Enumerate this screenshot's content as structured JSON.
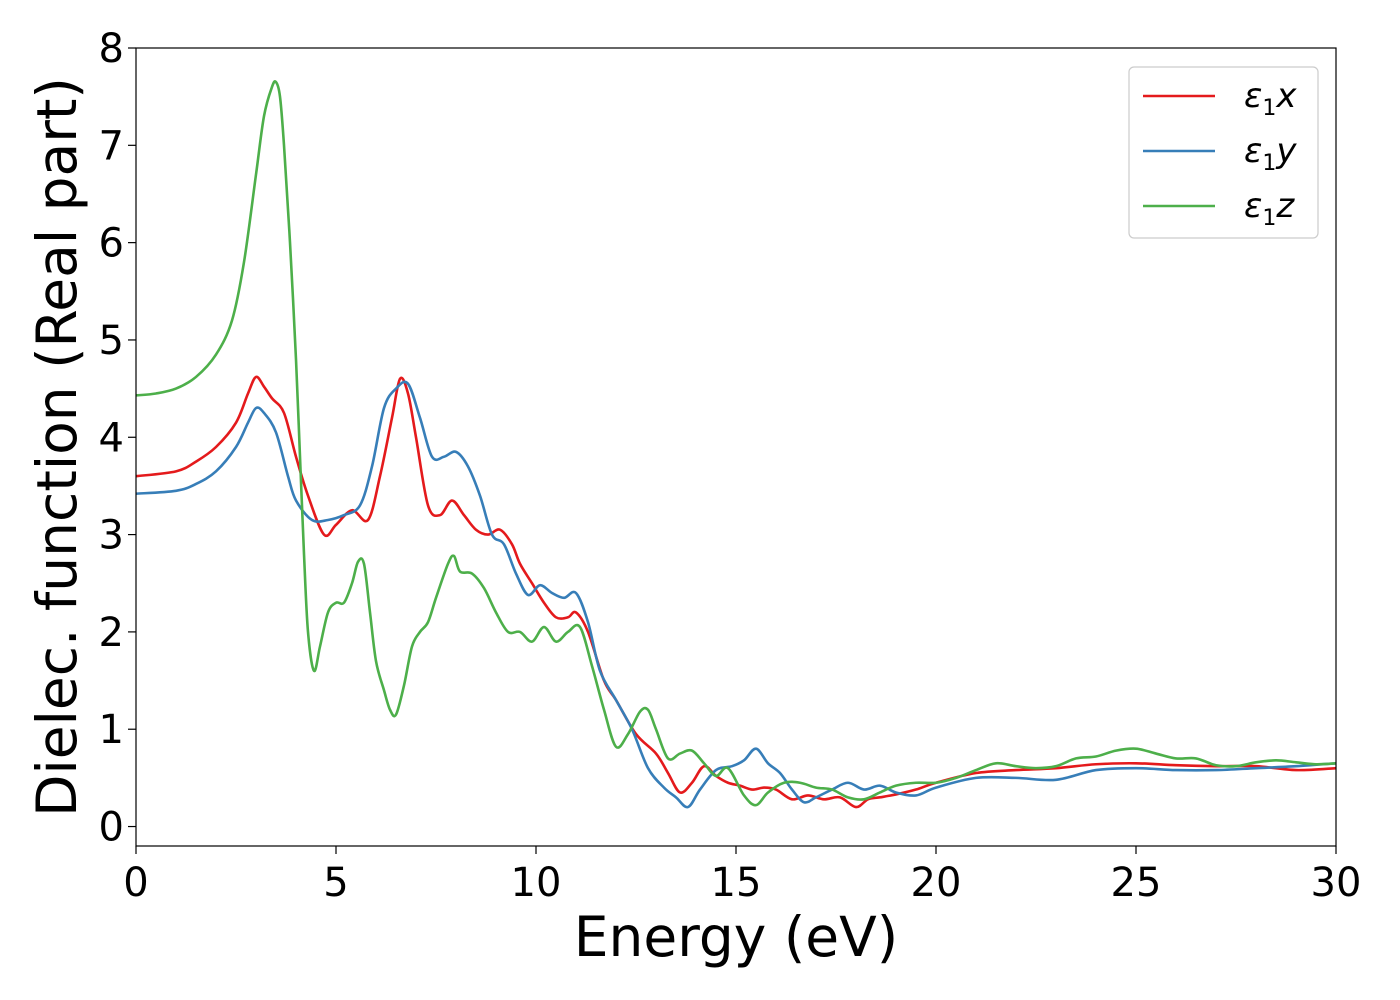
{
  "chart_data": {
    "type": "line",
    "xlabel": "Energy (eV)",
    "ylabel": "Dielec. function (Real part)",
    "xlim": [
      0,
      30
    ],
    "ylim": [
      -0.2,
      8.0
    ],
    "xticks": [
      0,
      5,
      10,
      15,
      20,
      25,
      30
    ],
    "yticks": [
      0,
      1,
      2,
      3,
      4,
      5,
      6,
      7,
      8
    ],
    "grid": false,
    "legend_position": "top-right",
    "series": [
      {
        "name": "ε1x",
        "legend_main": "ε",
        "legend_sub": "1",
        "legend_suffix": "x",
        "color": "#e41a1c",
        "x": [
          0,
          1,
          1.5,
          2,
          2.5,
          2.8,
          3.0,
          3.2,
          3.4,
          3.7,
          4.0,
          4.3,
          4.7,
          5.0,
          5.4,
          5.8,
          6.1,
          6.4,
          6.6,
          6.8,
          7.0,
          7.3,
          7.6,
          7.9,
          8.2,
          8.5,
          8.8,
          9.1,
          9.4,
          9.6,
          9.9,
          10.2,
          10.5,
          10.8,
          11.0,
          11.3,
          11.7,
          12.0,
          12.5,
          13.0,
          13.3,
          13.6,
          13.9,
          14.2,
          14.5,
          14.8,
          15.1,
          15.4,
          15.7,
          16.0,
          16.4,
          16.8,
          17.2,
          17.6,
          18.0,
          18.3,
          18.6,
          19.0,
          19.5,
          20.0,
          21.0,
          22.0,
          23.0,
          24.0,
          25.0,
          26.0,
          27.0,
          28.0,
          29.0,
          30.0
        ],
        "values": [
          3.6,
          3.65,
          3.75,
          3.9,
          4.15,
          4.45,
          4.62,
          4.52,
          4.4,
          4.25,
          3.8,
          3.4,
          3.0,
          3.1,
          3.25,
          3.15,
          3.6,
          4.2,
          4.6,
          4.45,
          4.0,
          3.3,
          3.2,
          3.35,
          3.2,
          3.05,
          3.0,
          3.05,
          2.9,
          2.7,
          2.5,
          2.3,
          2.15,
          2.15,
          2.2,
          2.0,
          1.5,
          1.3,
          0.95,
          0.75,
          0.55,
          0.35,
          0.45,
          0.62,
          0.52,
          0.45,
          0.42,
          0.38,
          0.4,
          0.38,
          0.28,
          0.32,
          0.28,
          0.3,
          0.2,
          0.28,
          0.3,
          0.33,
          0.38,
          0.45,
          0.55,
          0.58,
          0.6,
          0.64,
          0.65,
          0.63,
          0.62,
          0.62,
          0.58,
          0.6
        ]
      },
      {
        "name": "ε1y",
        "legend_main": "ε",
        "legend_sub": "1",
        "legend_suffix": "y",
        "color": "#377eb8",
        "x": [
          0,
          1,
          1.5,
          2,
          2.5,
          2.8,
          3.0,
          3.2,
          3.5,
          3.8,
          4.0,
          4.4,
          4.8,
          5.2,
          5.6,
          5.9,
          6.2,
          6.5,
          6.8,
          7.1,
          7.4,
          7.7,
          8.0,
          8.3,
          8.6,
          8.9,
          9.2,
          9.5,
          9.8,
          10.1,
          10.4,
          10.7,
          11.0,
          11.3,
          11.6,
          12.0,
          12.4,
          12.8,
          13.2,
          13.5,
          13.8,
          14.1,
          14.5,
          14.9,
          15.2,
          15.5,
          15.8,
          16.1,
          16.4,
          16.7,
          17.0,
          17.4,
          17.8,
          18.2,
          18.6,
          19.0,
          19.5,
          20.0,
          21.0,
          22.0,
          23.0,
          24.0,
          25.0,
          26.0,
          27.0,
          28.0,
          29.0,
          30.0
        ],
        "values": [
          3.42,
          3.45,
          3.52,
          3.65,
          3.9,
          4.15,
          4.3,
          4.25,
          4.05,
          3.6,
          3.35,
          3.15,
          3.15,
          3.2,
          3.3,
          3.7,
          4.3,
          4.5,
          4.55,
          4.2,
          3.8,
          3.8,
          3.85,
          3.7,
          3.4,
          3.0,
          2.9,
          2.6,
          2.38,
          2.48,
          2.4,
          2.35,
          2.4,
          2.1,
          1.6,
          1.3,
          1.0,
          0.6,
          0.4,
          0.3,
          0.2,
          0.38,
          0.58,
          0.62,
          0.68,
          0.8,
          0.65,
          0.55,
          0.38,
          0.25,
          0.3,
          0.38,
          0.45,
          0.38,
          0.42,
          0.35,
          0.32,
          0.4,
          0.5,
          0.5,
          0.48,
          0.58,
          0.6,
          0.58,
          0.58,
          0.6,
          0.62,
          0.65
        ]
      },
      {
        "name": "ε1z",
        "legend_main": "ε",
        "legend_sub": "1",
        "legend_suffix": "z",
        "color": "#4daf4a",
        "x": [
          0,
          0.5,
          1.0,
          1.5,
          2.0,
          2.4,
          2.7,
          3.0,
          3.2,
          3.4,
          3.5,
          3.6,
          3.7,
          3.85,
          4.0,
          4.1,
          4.2,
          4.3,
          4.45,
          4.6,
          4.8,
          5.0,
          5.2,
          5.4,
          5.55,
          5.7,
          5.85,
          6.0,
          6.2,
          6.35,
          6.5,
          6.7,
          6.9,
          7.1,
          7.3,
          7.5,
          7.8,
          7.95,
          8.1,
          8.4,
          8.7,
          9.0,
          9.3,
          9.6,
          9.9,
          10.2,
          10.5,
          10.8,
          11.1,
          11.4,
          11.7,
          12.0,
          12.3,
          12.6,
          12.8,
          13.0,
          13.3,
          13.6,
          13.9,
          14.2,
          14.5,
          14.8,
          15.2,
          15.5,
          15.8,
          16.2,
          16.6,
          17.0,
          17.4,
          17.8,
          18.2,
          18.6,
          19.0,
          19.5,
          20.0,
          20.5,
          21.0,
          21.5,
          22.0,
          22.5,
          23.0,
          23.5,
          24.0,
          24.5,
          25.0,
          25.5,
          26.0,
          26.5,
          27.0,
          27.5,
          28.0,
          28.5,
          29.0,
          29.5,
          30.0
        ],
        "values": [
          4.43,
          4.45,
          4.5,
          4.62,
          4.85,
          5.2,
          5.8,
          6.7,
          7.3,
          7.6,
          7.65,
          7.5,
          7.0,
          6.0,
          4.8,
          3.8,
          2.8,
          2.0,
          1.6,
          1.85,
          2.2,
          2.3,
          2.3,
          2.5,
          2.72,
          2.7,
          2.2,
          1.7,
          1.4,
          1.2,
          1.15,
          1.45,
          1.85,
          2.0,
          2.1,
          2.35,
          2.7,
          2.78,
          2.62,
          2.6,
          2.45,
          2.2,
          2.0,
          2.0,
          1.9,
          2.05,
          1.9,
          2.0,
          2.05,
          1.65,
          1.2,
          0.82,
          0.95,
          1.18,
          1.2,
          1.0,
          0.7,
          0.75,
          0.78,
          0.65,
          0.52,
          0.6,
          0.32,
          0.22,
          0.35,
          0.45,
          0.45,
          0.4,
          0.38,
          0.3,
          0.28,
          0.35,
          0.42,
          0.45,
          0.45,
          0.5,
          0.58,
          0.65,
          0.62,
          0.6,
          0.62,
          0.7,
          0.72,
          0.78,
          0.8,
          0.75,
          0.7,
          0.7,
          0.63,
          0.62,
          0.66,
          0.68,
          0.66,
          0.64,
          0.65
        ]
      }
    ]
  }
}
